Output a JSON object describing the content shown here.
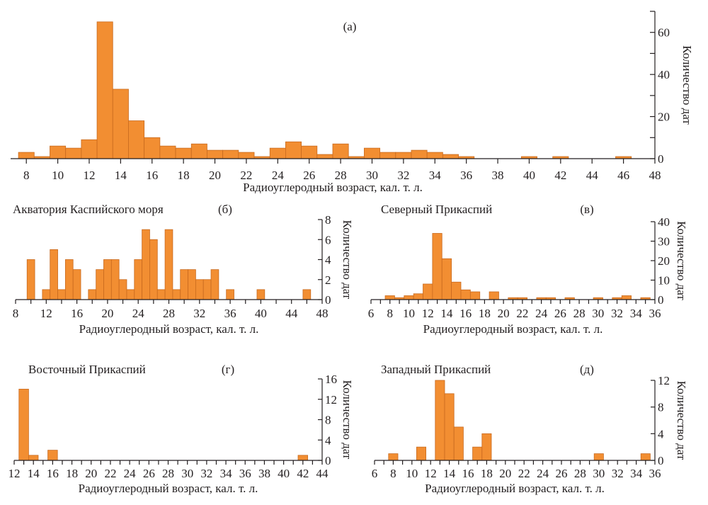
{
  "chart_data": [
    {
      "id": "a",
      "type": "bar",
      "panel_label": "(а)",
      "title": "",
      "xlabel": "Радиоуглеродный возраст, кал. т. л.",
      "ylabel": "Количество дат",
      "xlim": [
        7,
        48
      ],
      "ylim": [
        0,
        70
      ],
      "x_ticks": [
        8,
        10,
        12,
        14,
        16,
        18,
        20,
        22,
        24,
        26,
        28,
        30,
        32,
        34,
        36,
        38,
        40,
        42,
        44,
        46,
        48
      ],
      "x_minor_step": 2,
      "y_ticks": [
        0,
        20,
        40,
        60
      ],
      "y_minor_ticks": [
        10,
        30,
        50,
        70
      ],
      "grid": false,
      "y_axis_side": "right",
      "bins": [
        8,
        9,
        10,
        11,
        12,
        13,
        14,
        15,
        16,
        17,
        18,
        19,
        20,
        21,
        22,
        23,
        24,
        25,
        26,
        27,
        28,
        29,
        30,
        31,
        32,
        33,
        34,
        35,
        36,
        40,
        42,
        46
      ],
      "values": [
        3,
        1,
        6,
        5,
        9,
        65,
        33,
        18,
        10,
        6,
        5,
        7,
        4,
        4,
        3,
        1,
        5,
        8,
        6,
        2,
        7,
        1,
        5,
        3,
        3,
        4,
        3,
        2,
        1,
        1,
        1,
        1
      ]
    },
    {
      "id": "b",
      "type": "bar",
      "panel_label": "(б)",
      "title": "Акватория Каспийского моря",
      "xlabel": "Радиоуглеродный возраст, кал. т. л.",
      "ylabel": "Количество дат",
      "xlim": [
        8,
        48
      ],
      "ylim": [
        0,
        8
      ],
      "x_ticks": [
        8,
        12,
        16,
        20,
        24,
        28,
        32,
        36,
        40,
        44,
        48
      ],
      "x_minor_step": 2,
      "y_ticks": [
        0,
        2,
        4,
        6,
        8
      ],
      "grid": false,
      "y_axis_side": "right",
      "bins": [
        10,
        12,
        13,
        14,
        15,
        16,
        18,
        19,
        20,
        21,
        22,
        23,
        24,
        25,
        26,
        27,
        28,
        29,
        30,
        31,
        32,
        33,
        34,
        36,
        40,
        46
      ],
      "values": [
        4,
        1,
        5,
        1,
        4,
        3,
        1,
        3,
        4,
        4,
        2,
        1,
        4,
        7,
        6,
        1,
        7,
        1,
        3,
        3,
        2,
        2,
        3,
        1,
        1,
        1
      ]
    },
    {
      "id": "v",
      "type": "bar",
      "panel_label": "(в)",
      "title": "Северный Прикаспий",
      "xlabel": "Радиоуглеродный возраст, кал. т. л.",
      "ylabel": "Количество дат",
      "xlim": [
        6,
        36
      ],
      "ylim": [
        0,
        40
      ],
      "x_ticks": [
        6,
        8,
        10,
        12,
        14,
        16,
        18,
        20,
        22,
        24,
        26,
        28,
        30,
        32,
        34,
        36
      ],
      "x_minor_step": 1,
      "y_ticks": [
        0,
        10,
        20,
        30,
        40
      ],
      "grid": false,
      "y_axis_side": "right",
      "bins": [
        8,
        9,
        10,
        11,
        12,
        13,
        14,
        15,
        16,
        17,
        19,
        21,
        22,
        24,
        25,
        27,
        30,
        32,
        33,
        35
      ],
      "values": [
        2,
        1,
        2,
        3,
        8,
        34,
        21,
        9,
        5,
        4,
        4,
        1,
        1,
        1,
        1,
        1,
        1,
        1,
        2,
        1
      ]
    },
    {
      "id": "g",
      "type": "bar",
      "panel_label": "(г)",
      "title": "Восточный Прикаспий",
      "xlabel": "Радиоуглеродный возраст, кал. т. л.",
      "ylabel": "Количество дат",
      "xlim": [
        12,
        44
      ],
      "ylim": [
        0,
        16
      ],
      "x_ticks": [
        12,
        14,
        16,
        18,
        20,
        22,
        24,
        26,
        28,
        30,
        32,
        34,
        36,
        38,
        40,
        42,
        44
      ],
      "x_minor_step": 1,
      "y_ticks": [
        0,
        4,
        8,
        12,
        16
      ],
      "grid": false,
      "y_axis_side": "right",
      "bins": [
        13,
        14,
        16,
        42
      ],
      "values": [
        14,
        1,
        2,
        1
      ]
    },
    {
      "id": "d",
      "type": "bar",
      "panel_label": "(д)",
      "title": "Западный Прикаспий",
      "xlabel": "Радиоуглеродный возраст, кал. т. л.",
      "ylabel": "Количество дат",
      "xlim": [
        6,
        36
      ],
      "ylim": [
        0,
        12
      ],
      "x_ticks": [
        6,
        8,
        10,
        12,
        14,
        16,
        18,
        20,
        22,
        24,
        26,
        28,
        30,
        32,
        34,
        36
      ],
      "x_minor_step": 1,
      "y_ticks": [
        0,
        4,
        8,
        12
      ],
      "grid": false,
      "y_axis_side": "right",
      "bins": [
        8,
        11,
        13,
        14,
        15,
        17,
        18,
        30,
        35
      ],
      "values": [
        1,
        2,
        12,
        10,
        5,
        2,
        4,
        1,
        1
      ]
    }
  ],
  "colors": {
    "bar_fill": "#f28e32",
    "bar_stroke": "#c86a1f",
    "axis": "#231f20"
  }
}
